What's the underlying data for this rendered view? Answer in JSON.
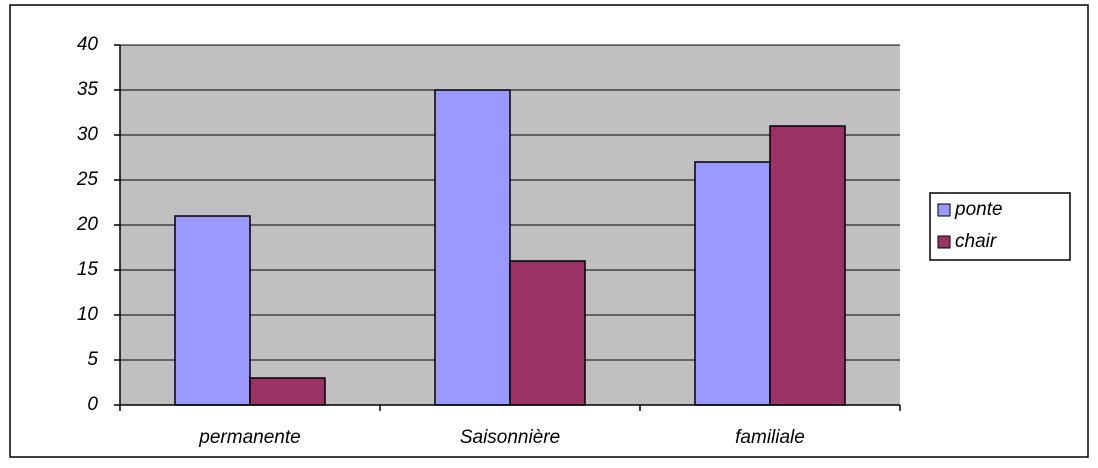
{
  "chart_data": {
    "type": "bar",
    "categories": [
      "permanente",
      "Saisonnière",
      "familiale"
    ],
    "series": [
      {
        "name": "ponte",
        "color": "#9999ff",
        "values": [
          21,
          35,
          27
        ]
      },
      {
        "name": "chair",
        "color": "#993366",
        "values": [
          3,
          16,
          31
        ]
      }
    ],
    "ylim": [
      0,
      40
    ],
    "yticks": [
      0,
      5,
      10,
      15,
      20,
      25,
      30,
      35,
      40
    ],
    "grid": true,
    "plot_background": "#c0c0c0",
    "legend": "right"
  }
}
